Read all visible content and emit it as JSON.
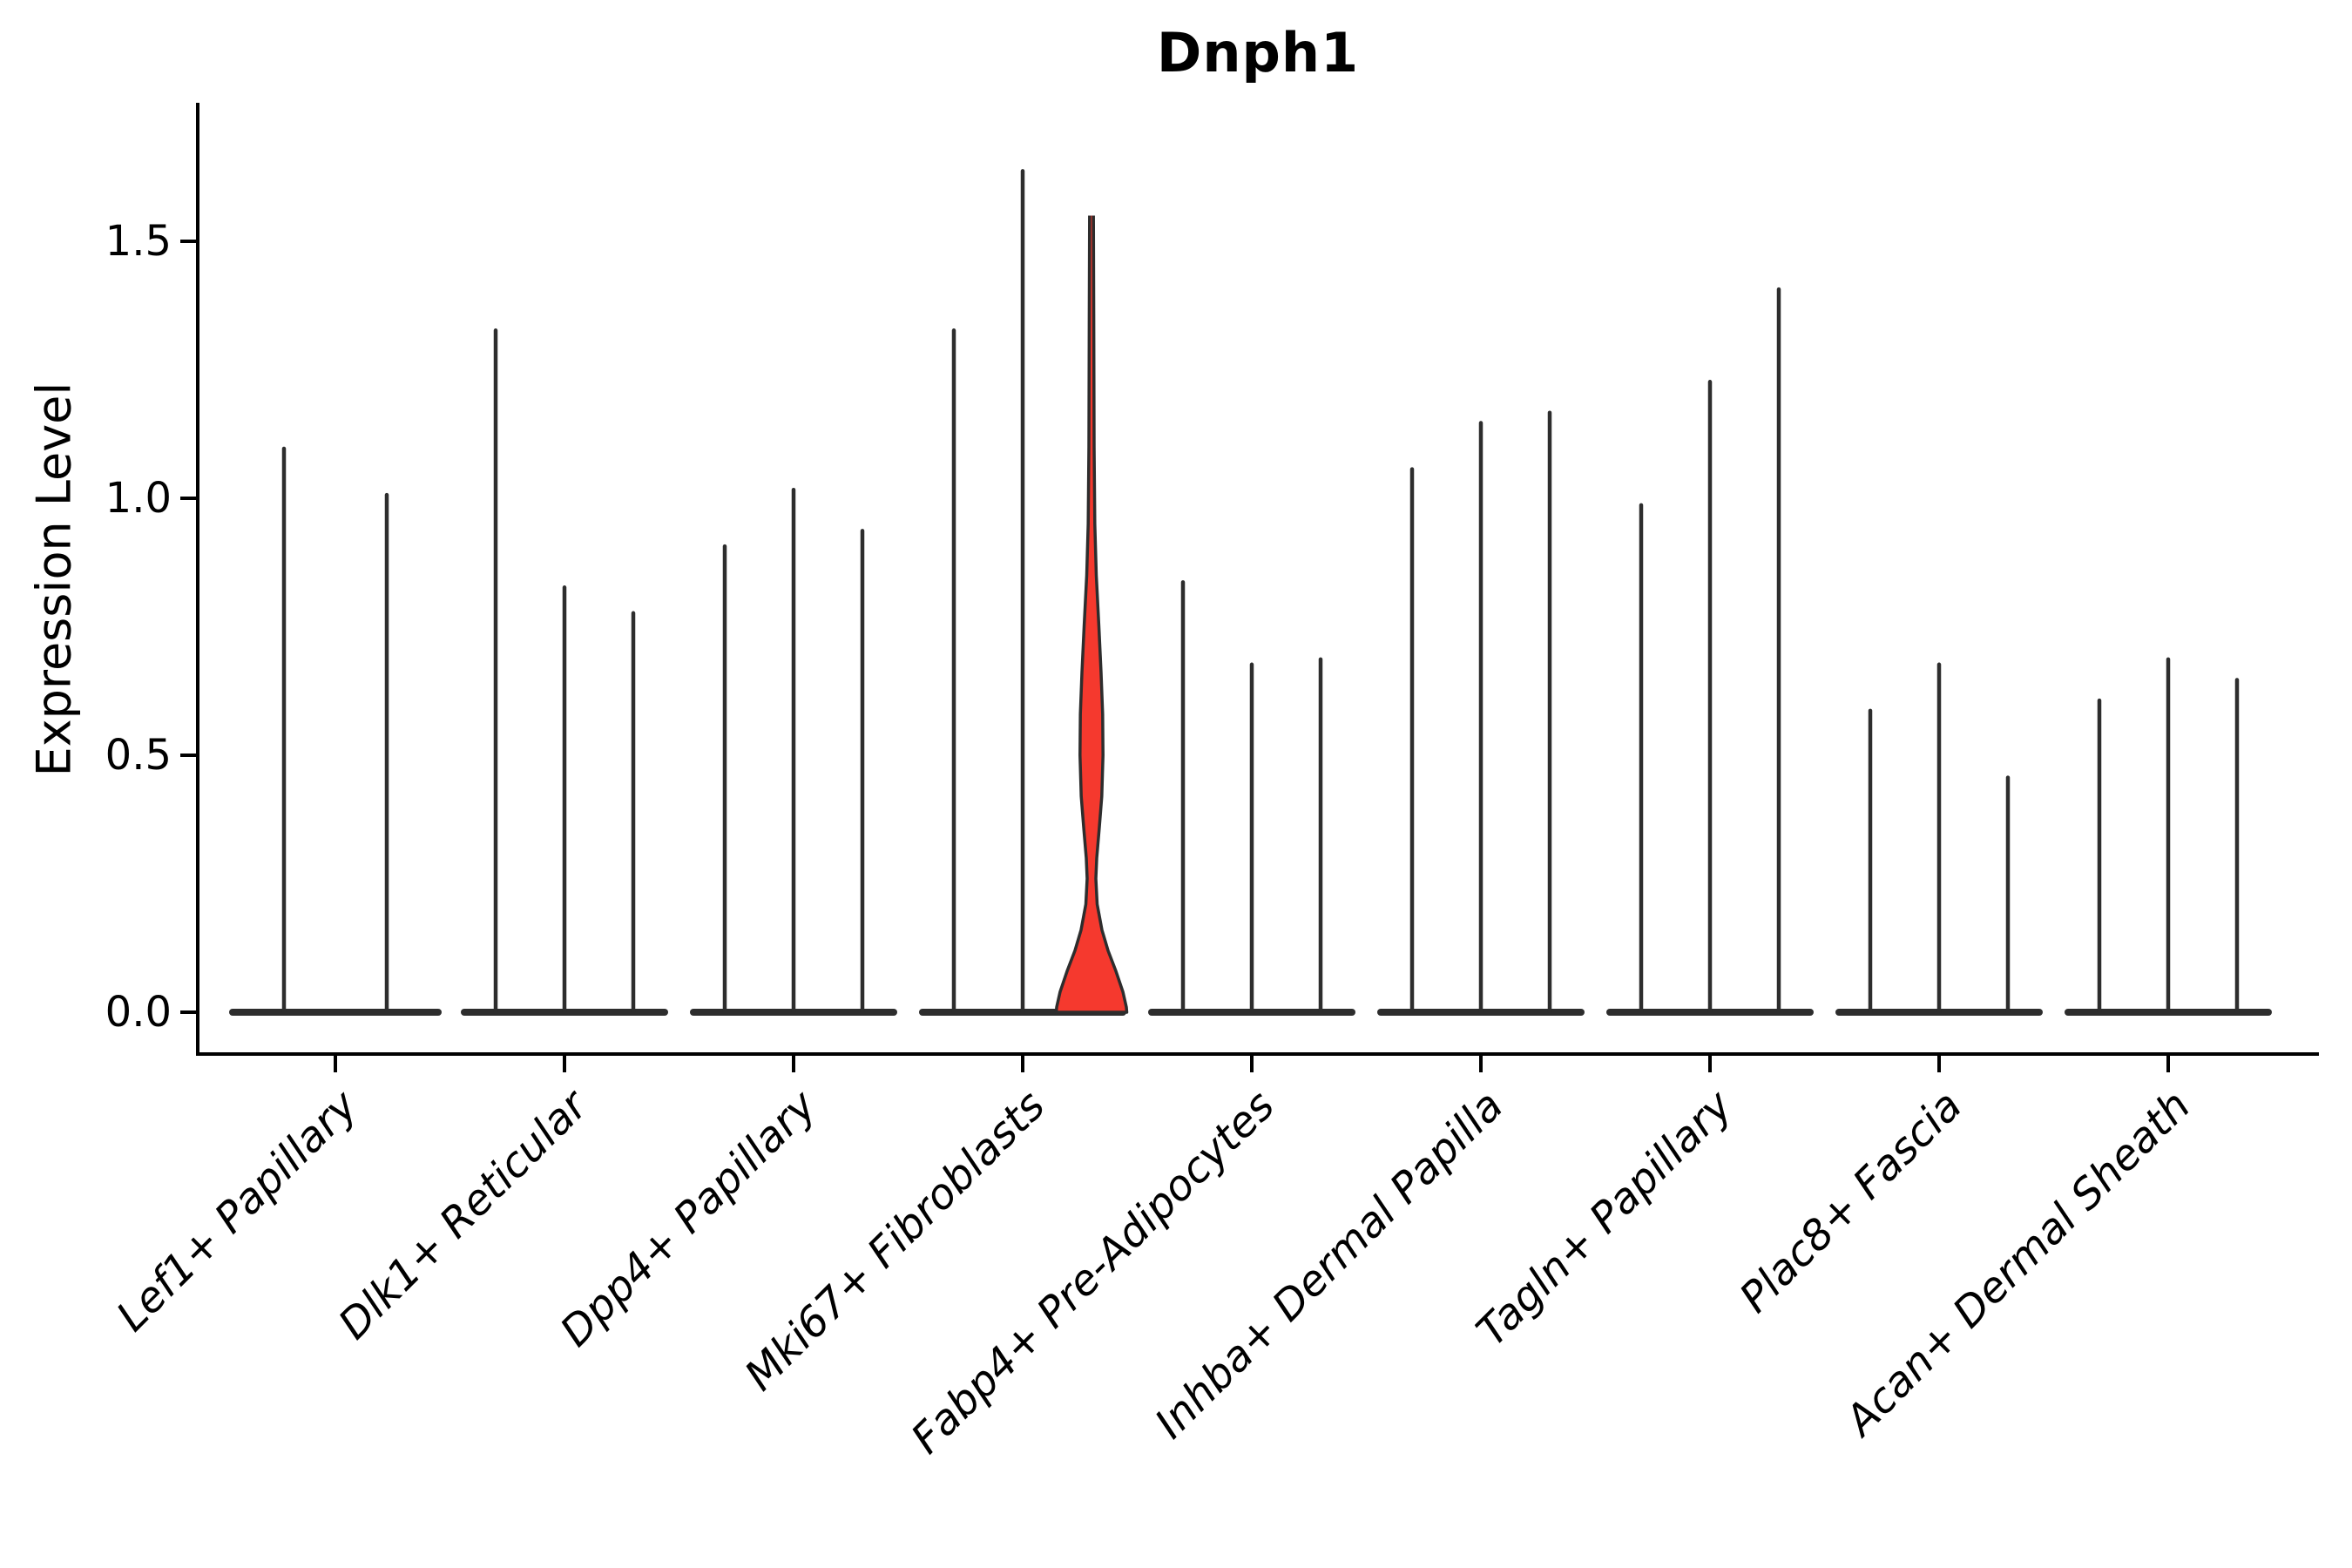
{
  "chart_data": {
    "type": "violin",
    "title": "Dnph1",
    "ylabel": "Expression Level",
    "xlabel": "",
    "yticks": [
      0.0,
      0.5,
      1.0,
      1.5
    ],
    "ylim": [
      -0.08,
      1.77
    ],
    "grid": false,
    "legend": "none",
    "categories": [
      "Lef1+ Papillary",
      "Dlk1+ Reticular",
      "Dpp4+ Papillary",
      "Mki67+ Fibroblasts",
      "Fabp4+ Pre-Adipocytes",
      "Inhba+ Dermal Papilla",
      "Tagln+ Papillary",
      "Plac8+ Fascia",
      "Acan+ Dermal Sheath"
    ],
    "groups": [
      {
        "label": "Lef1+ Papillary",
        "violin_max": [
          1.1,
          1.01
        ]
      },
      {
        "label": "Dlk1+ Reticular",
        "violin_max": [
          1.33,
          0.83,
          0.78
        ]
      },
      {
        "label": "Dpp4+ Papillary",
        "violin_max": [
          0.91,
          1.02,
          0.94
        ]
      },
      {
        "label": "Mki67+ Fibroblasts",
        "violin_max": [
          1.33,
          1.64,
          1.55
        ]
      },
      {
        "label": "Fabp4+ Pre-Adipocytes",
        "violin_max": [
          0.84,
          0.68,
          0.69
        ]
      },
      {
        "label": "Inhba+ Dermal Papilla",
        "violin_max": [
          1.06,
          1.15,
          1.17
        ]
      },
      {
        "label": "Tagln+ Papillary",
        "violin_max": [
          0.99,
          1.23,
          1.41
        ]
      },
      {
        "label": "Plac8+ Fascia",
        "violin_max": [
          0.59,
          0.68,
          0.46
        ]
      },
      {
        "label": "Acan+ Dermal Sheath",
        "violin_max": [
          0.61,
          0.69,
          0.65
        ]
      }
    ],
    "highlight": {
      "group": "Mki67+ Fibroblasts",
      "group_index": 3,
      "violin_index": 2,
      "max": 1.55,
      "shape_profile": [
        [
          1.55,
          2.2
        ],
        [
          1.35,
          2.6
        ],
        [
          1.1,
          3.0
        ],
        [
          0.95,
          3.8
        ],
        [
          0.85,
          5.5
        ],
        [
          0.75,
          8.5
        ],
        [
          0.66,
          11.0
        ],
        [
          0.58,
          12.8
        ],
        [
          0.5,
          13.2
        ],
        [
          0.42,
          11.8
        ],
        [
          0.36,
          9.0
        ],
        [
          0.3,
          6.0
        ],
        [
          0.26,
          5.0
        ],
        [
          0.21,
          6.5
        ],
        [
          0.16,
          12.0
        ],
        [
          0.12,
          19.0
        ],
        [
          0.08,
          28.0
        ],
        [
          0.04,
          36.0
        ],
        [
          0.01,
          40.0
        ],
        [
          0.0,
          40.5
        ]
      ]
    },
    "colors": {
      "highlight_fill": "#f5392e",
      "violin_edge": "#2d2d2d",
      "spine": "#000000",
      "background": "#ffffff",
      "text": "#000000"
    }
  }
}
